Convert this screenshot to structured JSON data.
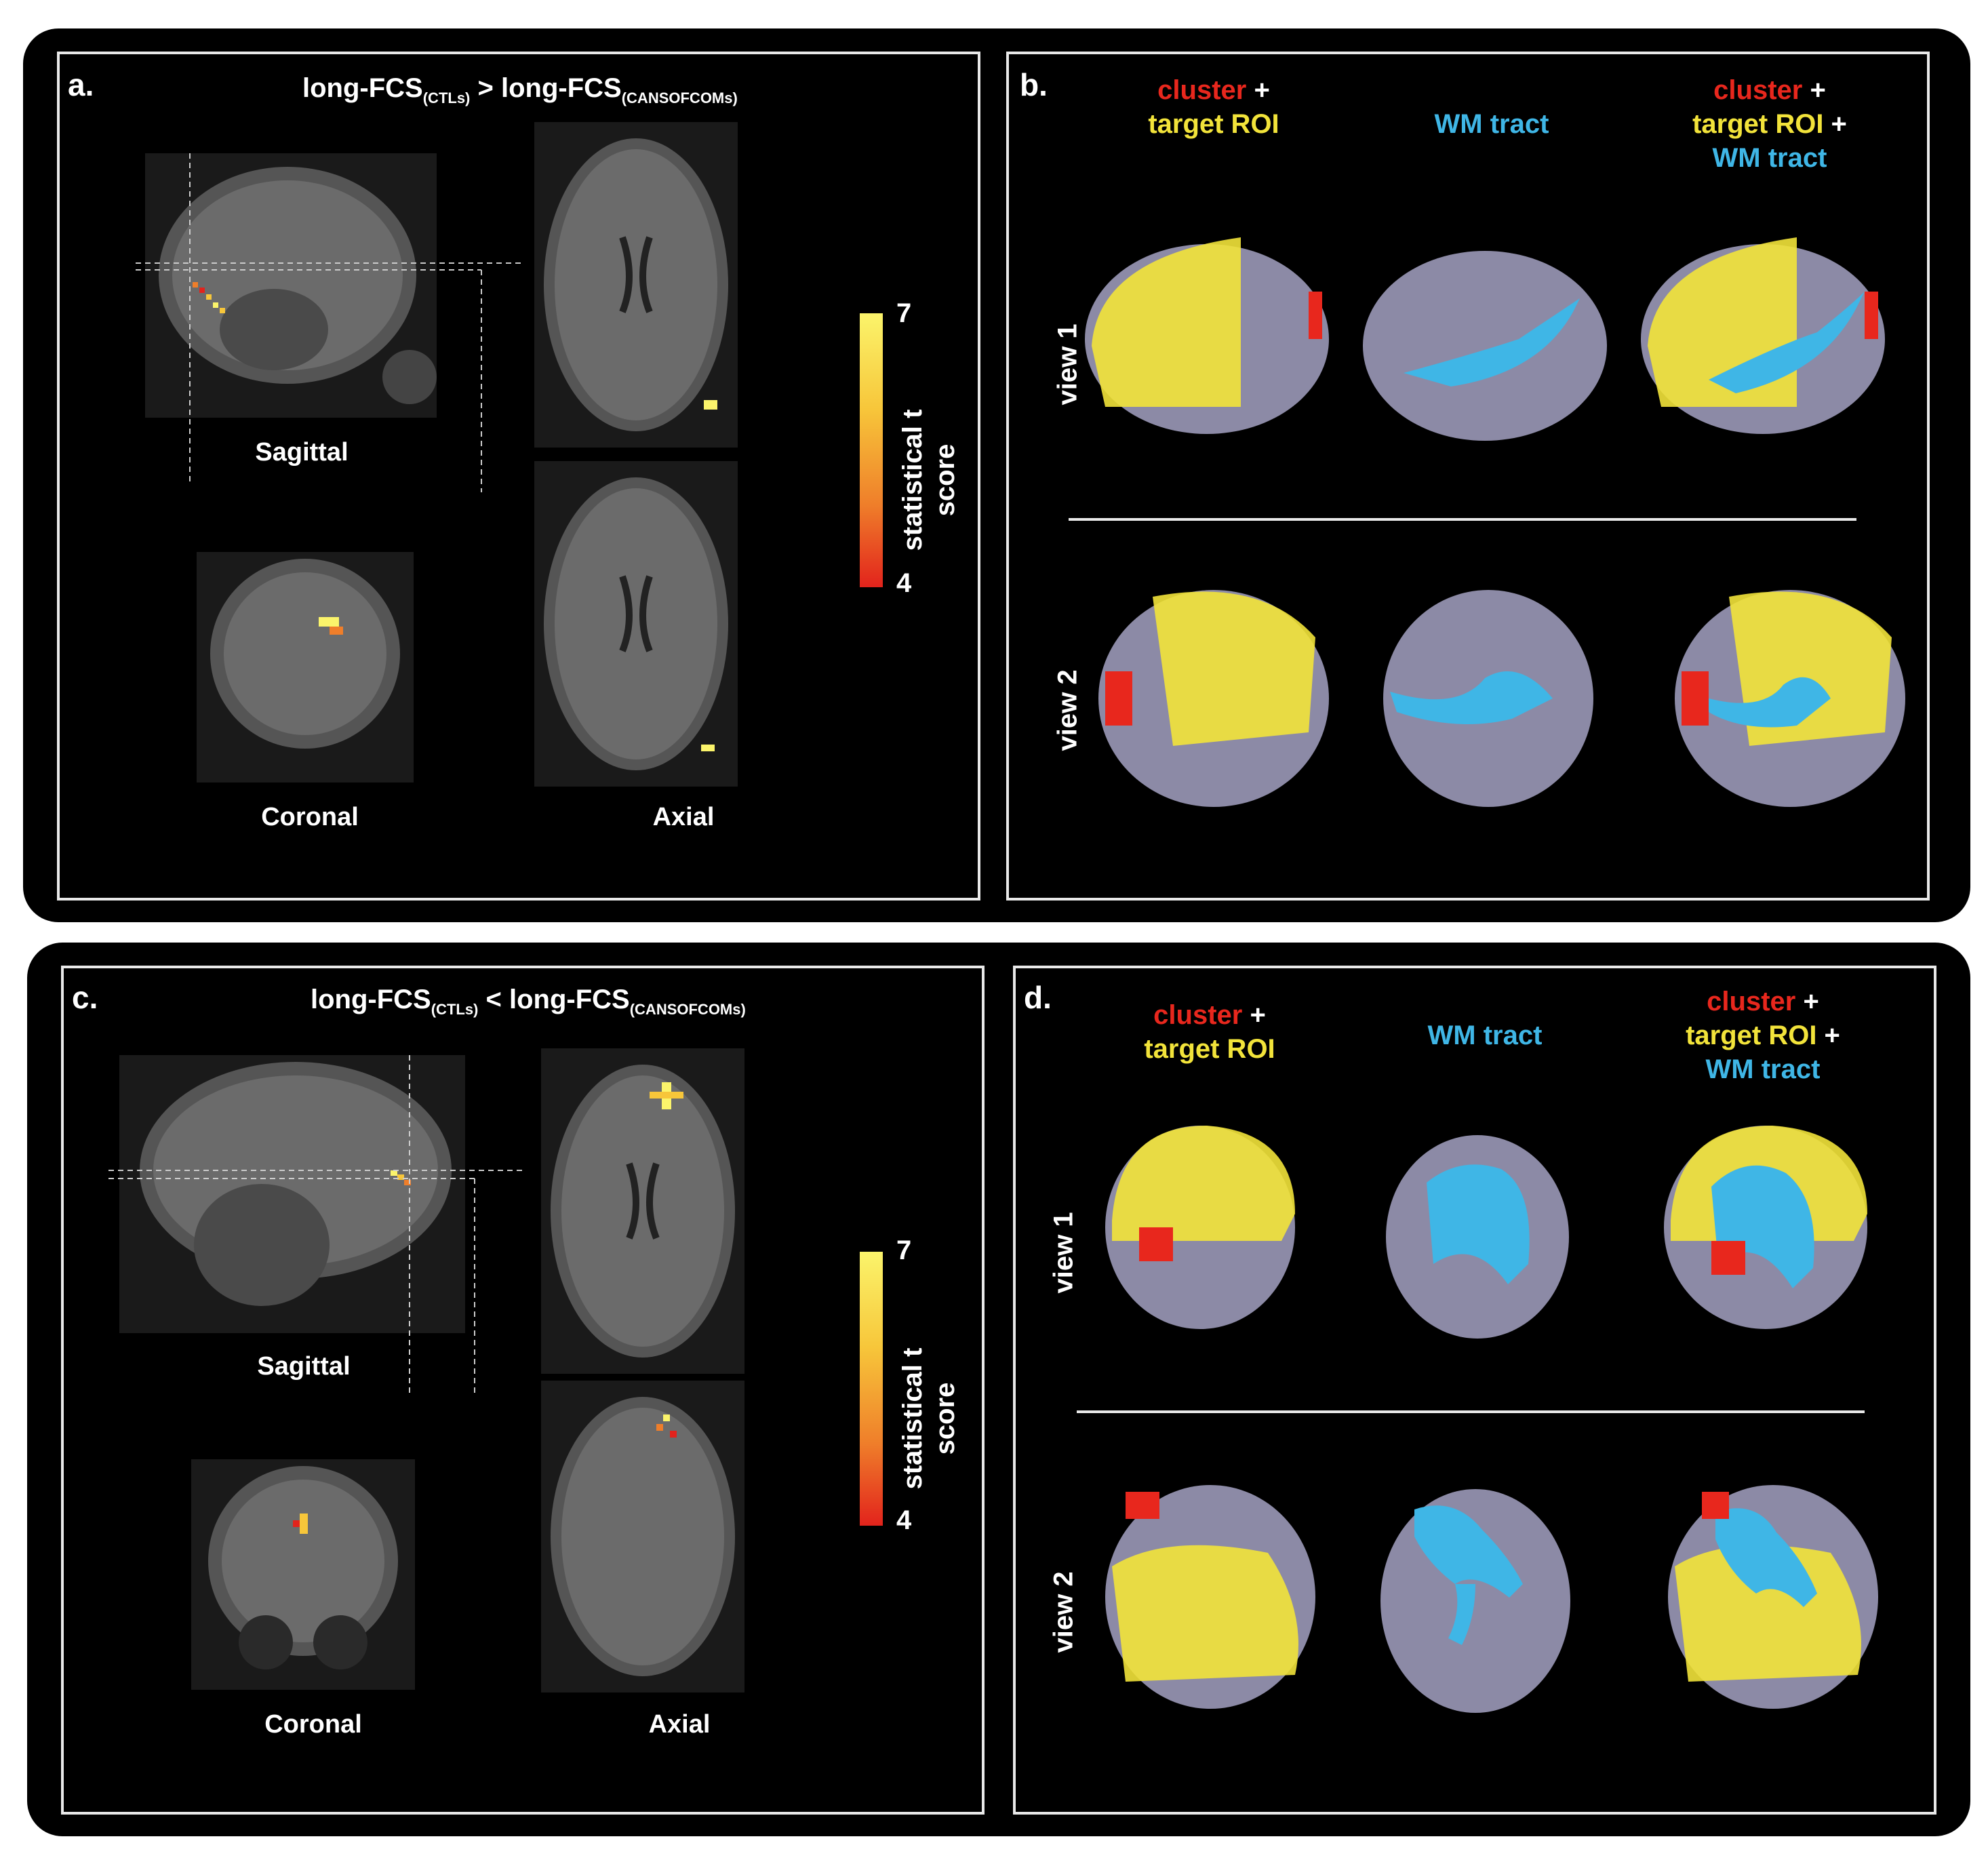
{
  "top": {
    "panel_a": {
      "label": "a.",
      "title_pre": "long-FCS",
      "title_sub1": "(CTLs)",
      "title_op": " > long-FCS",
      "title_sub2": "(CANSOFCOMs)",
      "captions": {
        "sagittal": "Sagittal",
        "coronal": "Coronal",
        "axial": "Axial"
      },
      "colorbar": {
        "max": "7",
        "min": "4",
        "title_line1": "statistical t",
        "title_line2": "score"
      }
    },
    "panel_b": {
      "label": "b.",
      "headers": [
        [
          "cluster",
          " +",
          "target ROI"
        ],
        [
          "WM tract"
        ],
        [
          "cluster",
          " +",
          "target ROI",
          " +",
          "WM tract"
        ]
      ],
      "views": [
        "view 1",
        "view 2"
      ]
    }
  },
  "bottom": {
    "panel_c": {
      "label": "c.",
      "title_pre": "long-FCS",
      "title_sub1": "(CTLs)",
      "title_op": " < long-FCS",
      "title_sub2": "(CANSOFCOMs)",
      "captions": {
        "sagittal": "Sagittal",
        "coronal": "Coronal",
        "axial": "Axial"
      },
      "colorbar": {
        "max": "7",
        "min": "4",
        "title_line1": "statistical t",
        "title_line2": "score"
      }
    },
    "panel_d": {
      "label": "d.",
      "headers": [
        [
          "cluster",
          " +",
          "target ROI"
        ],
        [
          "WM tract"
        ],
        [
          "cluster",
          " +",
          "target ROI",
          " +",
          "WM tract"
        ]
      ],
      "views": [
        "view 1",
        "view 2"
      ]
    }
  },
  "colors": {
    "cluster": "#e8271d",
    "target_roi": "#f2e33a",
    "wm_tract": "#3fb6e6",
    "brain": "#8c8aa6"
  }
}
